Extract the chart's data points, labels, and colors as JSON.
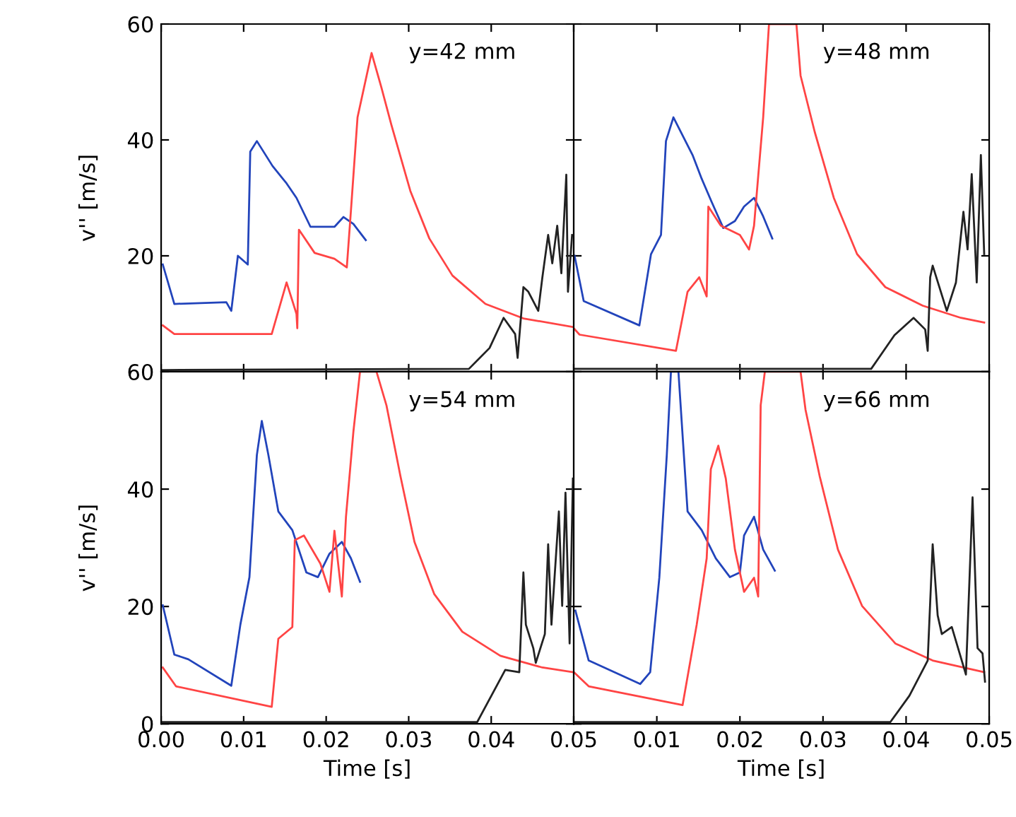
{
  "chart_data": [
    {
      "type": "line",
      "ylabel": "v'' [m/s]",
      "annotations": [
        "y=42 mm"
      ],
      "xlim": [
        0,
        0.05
      ],
      "ylim": [
        0,
        60
      ],
      "xticks": [
        {
          "value": 0,
          "label": null
        },
        {
          "value": 0.01,
          "label": null
        },
        {
          "value": 0.02,
          "label": null
        },
        {
          "value": 0.03,
          "label": null
        },
        {
          "value": 0.04,
          "label": null
        },
        {
          "value": 0.05,
          "label": null
        }
      ],
      "yticks": [
        {
          "value": 0,
          "label": null
        },
        20,
        40,
        60
      ],
      "tick_labels": "y",
      "grid": false,
      "legend": false,
      "series": [
        {
          "color": "#2244bb",
          "x": [
            0.0002,
            0.0016,
            0.0079,
            0.0085,
            0.0093,
            0.0105,
            0.0108,
            0.0116,
            0.0135,
            0.0152,
            0.0164,
            0.0181,
            0.021,
            0.0221,
            0.0233,
            0.0248
          ],
          "values": [
            18.5,
            11.7,
            12,
            10.5,
            20,
            18.5,
            38,
            39.8,
            35.5,
            32.5,
            30,
            25,
            25,
            26.7,
            25.5,
            22.7
          ]
        },
        {
          "color": "#ff4444",
          "x": [
            0.0002,
            0.0016,
            0.0134,
            0.0152,
            0.0164,
            0.0165,
            0.0167,
            0.0186,
            0.021,
            0.0225,
            0.023,
            0.0238,
            0.0255,
            0.0267,
            0.0279,
            0.0302,
            0.0325,
            0.0353,
            0.0393,
            0.0439,
            0.05
          ],
          "values": [
            8,
            6.5,
            6.5,
            15.4,
            10,
            7.5,
            24.5,
            20.5,
            19.5,
            18,
            27.8,
            43.9,
            55,
            49,
            42.6,
            31.2,
            23,
            16.6,
            11.7,
            9.2,
            7.7
          ]
        },
        {
          "color": "#222222",
          "x": [
            0.0002,
            0.0373,
            0.0398,
            0.0415,
            0.0429,
            0.0432,
            0.0439,
            0.0445,
            0.0457,
            0.0462,
            0.0469,
            0.0474,
            0.048,
            0.0485,
            0.0491,
            0.0493,
            0.0498
          ],
          "values": [
            0.3,
            0.5,
            4.1,
            9.3,
            6.5,
            2.4,
            14.6,
            13.8,
            10.5,
            16.3,
            23.6,
            18.7,
            25.2,
            17,
            34,
            13.8,
            23.6
          ]
        }
      ]
    },
    {
      "type": "line",
      "annotations": [
        "y=48 mm"
      ],
      "xlim": [
        0,
        0.05
      ],
      "ylim": [
        0,
        60
      ],
      "xticks": [
        {
          "value": 0,
          "label": null
        },
        {
          "value": 0.01,
          "label": null
        },
        {
          "value": 0.02,
          "label": null
        },
        {
          "value": 0.03,
          "label": null
        },
        {
          "value": 0.04,
          "label": null
        },
        {
          "value": 0.05,
          "label": null
        }
      ],
      "yticks": [
        {
          "value": 0,
          "label": null
        },
        {
          "value": 20,
          "label": null
        },
        {
          "value": 40,
          "label": null
        },
        {
          "value": 60,
          "label": null
        }
      ],
      "tick_labels": false,
      "grid": false,
      "legend": false,
      "series": [
        {
          "color": "#2244bb",
          "x": [
            0.0001,
            0.0012,
            0.0079,
            0.0093,
            0.0105,
            0.0111,
            0.012,
            0.0143,
            0.0154,
            0.0166,
            0.018,
            0.0194,
            0.0205,
            0.0217,
            0.0228,
            0.0239
          ],
          "values": [
            20,
            12.2,
            8,
            20.3,
            23.6,
            39.8,
            43.9,
            37.4,
            33.3,
            29.3,
            24.8,
            26,
            28.5,
            30,
            26.8,
            23
          ]
        },
        {
          "color": "#ff4444",
          "x": [
            0,
            0.0007,
            0.0123,
            0.0137,
            0.0151,
            0.016,
            0.0162,
            0.0177,
            0.02,
            0.0211,
            0.0217,
            0.0228,
            0.0235,
            0.0268,
            0.0273,
            0.029,
            0.0313,
            0.0341,
            0.0375,
            0.042,
            0.0466,
            0.0494
          ],
          "values": [
            7.5,
            6.4,
            3.6,
            13.8,
            16.3,
            13,
            28.5,
            25.2,
            23.6,
            21.1,
            25.2,
            43.9,
            60,
            60,
            51.1,
            41.4,
            30,
            20.3,
            14.6,
            11.4,
            9.3,
            8.5
          ]
        },
        {
          "color": "#222222",
          "x": [
            0.0001,
            0.0358,
            0.0386,
            0.0409,
            0.0423,
            0.0426,
            0.0429,
            0.0432,
            0.0449,
            0.046,
            0.0469,
            0.0474,
            0.0479,
            0.0485,
            0.049,
            0.0494
          ],
          "values": [
            0.5,
            0.5,
            6.3,
            9.3,
            7.3,
            3.6,
            16.3,
            18.3,
            10.5,
            15.4,
            27.6,
            21.1,
            34.1,
            15.4,
            37.4,
            20.3
          ]
        }
      ]
    },
    {
      "type": "line",
      "ylabel": "v'' [m/s]",
      "xlabel": "Time [s]",
      "annotations": [
        "y=54 mm"
      ],
      "xlim": [
        0,
        0.05
      ],
      "ylim": [
        0,
        60
      ],
      "xticks": [
        {
          "value": 0,
          "label": "0.00"
        },
        {
          "value": 0.01,
          "label": "0.01"
        },
        {
          "value": 0.02,
          "label": "0.02"
        },
        {
          "value": 0.03,
          "label": "0.03"
        },
        {
          "value": 0.04,
          "label": "0.04"
        },
        {
          "value": 0.05,
          "label": "0.05"
        }
      ],
      "yticks": [
        0,
        20,
        40,
        60
      ],
      "grid": false,
      "legend": false,
      "series": [
        {
          "color": "#2244bb",
          "x": [
            0.0002,
            0.0016,
            0.0033,
            0.0085,
            0.0096,
            0.0107,
            0.0116,
            0.0122,
            0.013,
            0.0142,
            0.0159,
            0.0176,
            0.019,
            0.0204,
            0.0219,
            0.023,
            0.0241
          ],
          "values": [
            20.2,
            11.8,
            11,
            6.5,
            16.9,
            25,
            45.8,
            51.6,
            45.8,
            36.2,
            33,
            25.8,
            25,
            29,
            31,
            28.2,
            24.2
          ]
        },
        {
          "color": "#ff4444",
          "x": [
            0.0002,
            0.0018,
            0.0134,
            0.0142,
            0.0159,
            0.0162,
            0.0173,
            0.0193,
            0.0204,
            0.021,
            0.0219,
            0.0224,
            0.0233,
            0.0241,
            0.0261,
            0.0273,
            0.029,
            0.0307,
            0.0331,
            0.0365,
            0.0411,
            0.0462,
            0.05
          ],
          "values": [
            9.6,
            6.4,
            2.9,
            14.5,
            16.5,
            31.3,
            32.1,
            27.3,
            22.5,
            32.9,
            21.7,
            35.3,
            49.8,
            60,
            60,
            54.3,
            42.2,
            31,
            22.1,
            15.7,
            11.6,
            9.6,
            8.8
          ]
        },
        {
          "color": "#222222",
          "x": [
            0.0002,
            0.0383,
            0.0417,
            0.0434,
            0.0439,
            0.0442,
            0.0451,
            0.0454,
            0.0465,
            0.0469,
            0.0473,
            0.0482,
            0.0486,
            0.049,
            0.0495,
            0.0499
          ],
          "values": [
            0.3,
            0.3,
            9.2,
            8.8,
            25.8,
            16.9,
            12.9,
            10.4,
            15.3,
            30.6,
            16.9,
            36.2,
            20.1,
            39.4,
            13.7,
            41.8
          ]
        }
      ]
    },
    {
      "type": "line",
      "xlabel": "Time [s]",
      "annotations": [
        "y=66 mm"
      ],
      "xlim": [
        0,
        0.05
      ],
      "ylim": [
        0,
        60
      ],
      "xticks": [
        {
          "value": 0,
          "label": null
        },
        {
          "value": 0.01,
          "label": "0.01"
        },
        {
          "value": 0.02,
          "label": "0.02"
        },
        {
          "value": 0.03,
          "label": "0.03"
        },
        {
          "value": 0.04,
          "label": "0.04"
        },
        {
          "value": 0.05,
          "label": "0.05"
        }
      ],
      "yticks": [
        {
          "value": 0,
          "label": null
        },
        {
          "value": 20,
          "label": null
        },
        {
          "value": 40,
          "label": null
        },
        {
          "value": 60,
          "label": null
        }
      ],
      "tick_labels": "x",
      "grid": false,
      "legend": false,
      "series": [
        {
          "color": "#2244bb",
          "x": [
            0.0002,
            0.0018,
            0.008,
            0.0092,
            0.0103,
            0.0112,
            0.0117,
            0.0126,
            0.0137,
            0.0154,
            0.0171,
            0.0188,
            0.02,
            0.0205,
            0.0217,
            0.0228,
            0.0242
          ],
          "values": [
            19.3,
            10.8,
            6.8,
            8.8,
            24.9,
            45.8,
            60,
            60,
            36.2,
            33,
            28.2,
            25,
            25.8,
            32.1,
            35.3,
            29.7,
            26.1
          ]
        },
        {
          "color": "#ff4444",
          "x": [
            0.0001,
            0.0018,
            0.0131,
            0.0148,
            0.016,
            0.0165,
            0.0174,
            0.0183,
            0.0194,
            0.0205,
            0.0217,
            0.0222,
            0.0225,
            0.023,
            0.0273,
            0.0279,
            0.0296,
            0.0318,
            0.0347,
            0.0387,
            0.0432,
            0.0494
          ],
          "values": [
            8.7,
            6.4,
            3.2,
            16.9,
            28.2,
            43.4,
            47.4,
            41.8,
            29.7,
            22.5,
            24.9,
            21.7,
            54.3,
            60,
            60,
            53.5,
            42.2,
            29.7,
            20.1,
            13.7,
            10.8,
            8.8
          ]
        },
        {
          "color": "#222222",
          "x": [
            0.0002,
            0.0381,
            0.0404,
            0.0426,
            0.0432,
            0.0438,
            0.0443,
            0.0455,
            0.0472,
            0.048,
            0.0486,
            0.0492,
            0.0495
          ],
          "values": [
            0.3,
            0.3,
            4.8,
            10.8,
            30.6,
            18.5,
            15.3,
            16.5,
            8.4,
            38.6,
            12.9,
            12,
            7.2
          ]
        }
      ]
    }
  ]
}
